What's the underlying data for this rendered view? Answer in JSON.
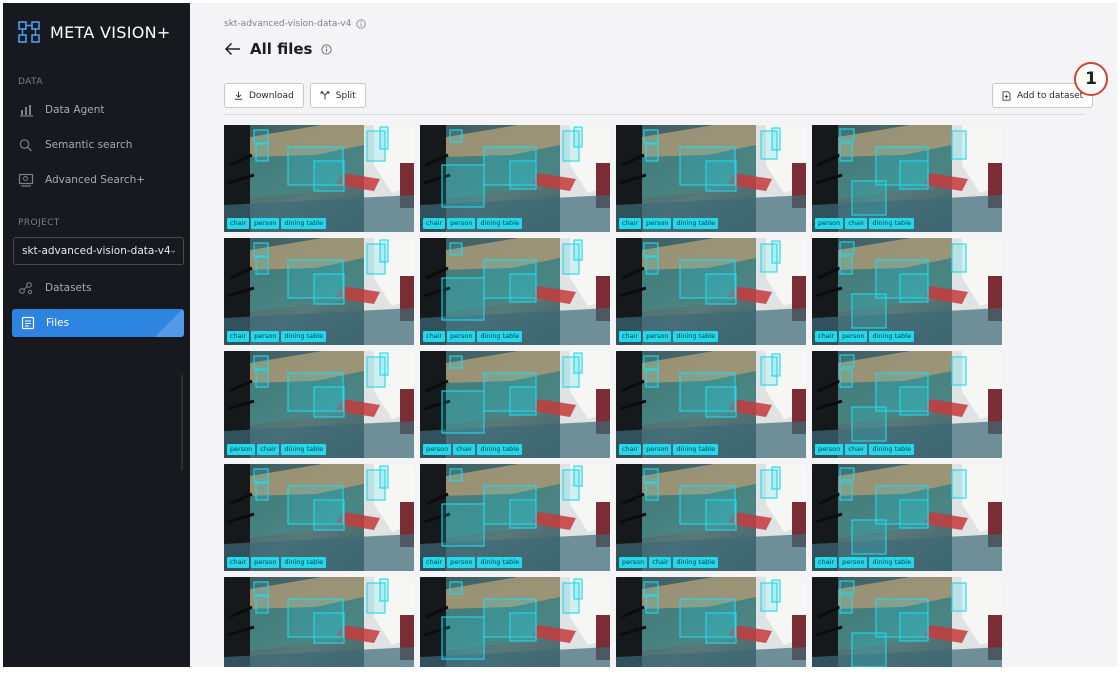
{
  "app": {
    "name": "META VISION+"
  },
  "sidebar": {
    "data_section": "DATA",
    "data_items": [
      {
        "label": "Data Agent",
        "icon": "bar-chart-icon"
      },
      {
        "label": "Semantic search",
        "icon": "search-icon"
      },
      {
        "label": "Advanced Search+",
        "icon": "image-search-icon"
      }
    ],
    "project_section": "PROJECT",
    "project_select": {
      "value": "skt-advanced-vision-data-v4"
    },
    "project_items": [
      {
        "label": "Datasets",
        "icon": "datasets-icon"
      },
      {
        "label": "Files",
        "icon": "files-icon",
        "active": true
      }
    ]
  },
  "main": {
    "breadcrumb": "skt-advanced-vision-data-v4",
    "title": "All files",
    "toolbar": {
      "download_label": "Download",
      "split_label": "Split",
      "add_to_dataset_label": "Add to dataset"
    }
  },
  "annotation": {
    "label": "1",
    "color": "#d4432c"
  },
  "colors": {
    "accent": "#2d83e0",
    "bbox": "#24d8eb",
    "sidebar": "#17191f"
  },
  "thumbnails": [
    {
      "tags": [
        "chair",
        "person",
        "dining table"
      ]
    },
    {
      "tags": [
        "chair",
        "person",
        "dining table"
      ]
    },
    {
      "tags": [
        "chair",
        "person",
        "dining table"
      ]
    },
    {
      "tags": [
        "person",
        "chair",
        "dining table"
      ]
    },
    {
      "tags": [
        "chair",
        "person",
        "dining table"
      ]
    },
    {
      "tags": [
        "chair",
        "person",
        "dining table"
      ]
    },
    {
      "tags": [
        "chair",
        "person",
        "dining table"
      ]
    },
    {
      "tags": [
        "chair",
        "person",
        "dining table"
      ]
    },
    {
      "tags": [
        "person",
        "chair",
        "dining table"
      ]
    },
    {
      "tags": [
        "person",
        "chair",
        "dining table"
      ]
    },
    {
      "tags": [
        "chair",
        "person",
        "dining table"
      ]
    },
    {
      "tags": [
        "person",
        "chair",
        "dining table"
      ]
    },
    {
      "tags": [
        "chair",
        "person",
        "dining table"
      ]
    },
    {
      "tags": [
        "chair",
        "person",
        "dining table"
      ]
    },
    {
      "tags": [
        "person",
        "chair",
        "dining table"
      ]
    },
    {
      "tags": [
        "chair",
        "person",
        "dining table"
      ]
    },
    {
      "tags": []
    },
    {
      "tags": []
    },
    {
      "tags": []
    },
    {
      "tags": []
    }
  ]
}
